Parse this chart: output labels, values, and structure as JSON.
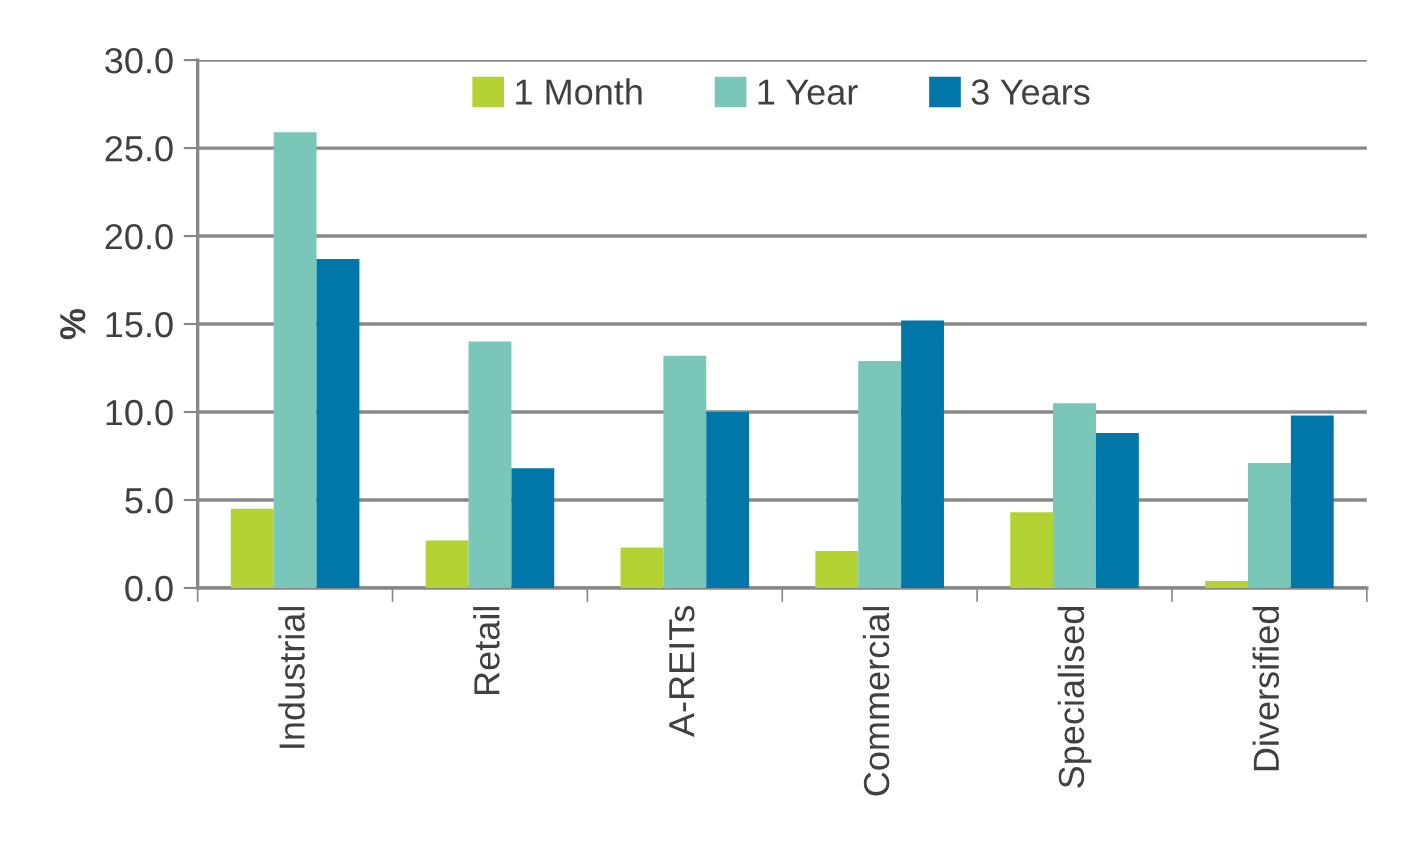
{
  "chart_data": {
    "type": "bar",
    "ylabel": "%",
    "categories": [
      "Industrial",
      "Retail",
      "A-REITs",
      "Commercial",
      "Specialised",
      "Diversified"
    ],
    "series": [
      {
        "name": "1 Month",
        "color": "#b3d335",
        "values": [
          4.5,
          2.7,
          2.3,
          2.1,
          4.3,
          0.4
        ]
      },
      {
        "name": "1 Year",
        "color": "#7ac6b8",
        "values": [
          25.9,
          14.0,
          13.2,
          12.9,
          10.5,
          7.1
        ]
      },
      {
        "name": "3 Years",
        "color": "#0077a8",
        "values": [
          18.7,
          6.8,
          10.0,
          15.2,
          8.8,
          9.8
        ]
      }
    ],
    "ylim": [
      0,
      30
    ],
    "yticks": [
      {
        "value": 0,
        "label": "0.0"
      },
      {
        "value": 5,
        "label": "5.0"
      },
      {
        "value": 10,
        "label": "10.0"
      },
      {
        "value": 15,
        "label": "15.0"
      },
      {
        "value": 20,
        "label": "20.0"
      },
      {
        "value": 25,
        "label": "25.0"
      },
      {
        "value": 30,
        "label": "30.0"
      }
    ],
    "grid": "y",
    "legend": "top"
  }
}
